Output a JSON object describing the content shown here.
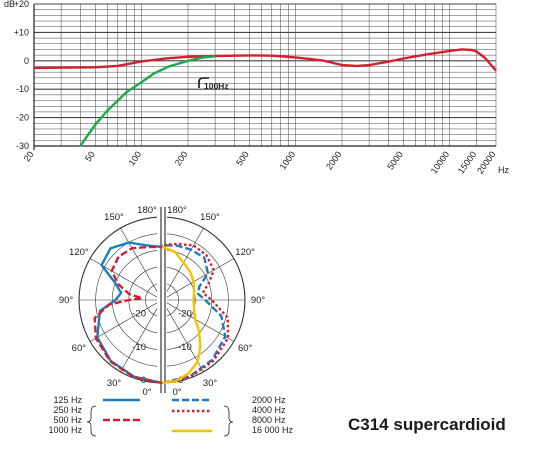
{
  "chart_data": [
    {
      "type": "line",
      "xscale": "log",
      "ylabel": "dB",
      "xunit": "Hz",
      "ylim": [
        -30,
        20
      ],
      "xlim": [
        20,
        20000
      ],
      "y_ticks": [
        "+20",
        "+10",
        "0",
        "-10",
        "-20",
        "-30"
      ],
      "x_ticks": [
        "20",
        "50",
        "100",
        "200",
        "500",
        "1000",
        "2000",
        "5000",
        "10000",
        "15000",
        "20000"
      ],
      "annotation": "100Hz",
      "series": [
        {
          "color": "#d32030",
          "points": [
            [
              20,
              -2.5
            ],
            [
              50,
              -2.3
            ],
            [
              70,
              -1.8
            ],
            [
              100,
              -0.2
            ],
            [
              150,
              0.9
            ],
            [
              200,
              1.4
            ],
            [
              300,
              1.7
            ],
            [
              500,
              1.9
            ],
            [
              700,
              1.8
            ],
            [
              1000,
              1.2
            ],
            [
              1500,
              0.1
            ],
            [
              2000,
              -1.5
            ],
            [
              2500,
              -1.8
            ],
            [
              3000,
              -1.5
            ],
            [
              4000,
              -0.3
            ],
            [
              5000,
              0.8
            ],
            [
              7000,
              2.2
            ],
            [
              10000,
              3.5
            ],
            [
              12000,
              4.0
            ],
            [
              14000,
              3.8
            ],
            [
              15000,
              3.2
            ],
            [
              17000,
              1.0
            ],
            [
              20000,
              -3.5
            ]
          ]
        },
        {
          "color": "#1fa84a",
          "points": [
            [
              40,
              -30
            ],
            [
              45,
              -26
            ],
            [
              50,
              -22.5
            ],
            [
              60,
              -17.5
            ],
            [
              70,
              -14
            ],
            [
              80,
              -11
            ],
            [
              100,
              -7.5
            ],
            [
              120,
              -4.5
            ],
            [
              150,
              -2
            ],
            [
              200,
              0
            ],
            [
              250,
              1.2
            ],
            [
              300,
              1.6
            ]
          ]
        }
      ]
    },
    {
      "type": "polar",
      "r_ticks": [
        "-20",
        "-10",
        "0"
      ],
      "rlim": [
        -25,
        0
      ],
      "angle_labels": [
        "180°",
        "150°",
        "120°",
        "90°",
        "60°",
        "30°",
        "0°"
      ],
      "legend": [
        {
          "label": "125 Hz",
          "color": "#1a7dc4",
          "style": "solid"
        },
        {
          "label": "250 Hz",
          "color": "",
          "style": ""
        },
        {
          "label": "500 Hz",
          "color": "#d32030",
          "style": "dashed"
        },
        {
          "label": "1000 Hz",
          "color": "",
          "style": ""
        },
        {
          "label": "2000 Hz",
          "color": "#1a7dc4",
          "style": "dashed"
        },
        {
          "label": "4000 Hz",
          "color": "#d32030",
          "style": "dotted"
        },
        {
          "label": "8000 Hz",
          "color": "",
          "style": ""
        },
        {
          "label": "16 000 Hz",
          "color": "#f5c400",
          "style": "solid"
        }
      ],
      "series": [
        {
          "name": "125 Hz",
          "side": "left",
          "color": "#1a7dc4",
          "style": "solid",
          "points": [
            [
              0,
              0
            ],
            [
              20,
              -0.4
            ],
            [
              40,
              -1
            ],
            [
              60,
              -2.5
            ],
            [
              80,
              -6
            ],
            [
              90,
              -11
            ],
            [
              100,
              -12.5
            ],
            [
              110,
              -10
            ],
            [
              120,
              -4
            ],
            [
              135,
              -3
            ],
            [
              150,
              -5
            ],
            [
              165,
              -8
            ],
            [
              180,
              -9
            ]
          ]
        },
        {
          "name": "500 Hz",
          "side": "left",
          "color": "#d32030",
          "style": "dashed",
          "points": [
            [
              0,
              0
            ],
            [
              20,
              -0.3
            ],
            [
              40,
              -0.8
            ],
            [
              60,
              -2
            ],
            [
              75,
              -4
            ],
            [
              85,
              -9
            ],
            [
              90,
              -15
            ],
            [
              95,
              -19
            ],
            [
              100,
              -15
            ],
            [
              110,
              -11
            ],
            [
              120,
              -7.5
            ],
            [
              135,
              -6.5
            ],
            [
              150,
              -7
            ],
            [
              165,
              -8.5
            ],
            [
              180,
              -9
            ]
          ]
        },
        {
          "name": "2000 Hz",
          "side": "right",
          "color": "#1a7dc4",
          "style": "dashed",
          "points": [
            [
              0,
              0
            ],
            [
              20,
              -0.5
            ],
            [
              40,
              -1.5
            ],
            [
              60,
              -3
            ],
            [
              75,
              -6.5
            ],
            [
              90,
              -12
            ],
            [
              100,
              -14
            ],
            [
              110,
              -13
            ],
            [
              120,
              -9
            ],
            [
              135,
              -7
            ],
            [
              150,
              -7.5
            ],
            [
              165,
              -8
            ],
            [
              180,
              -8.5
            ]
          ]
        },
        {
          "name": "4000 Hz",
          "side": "right",
          "color": "#d32030",
          "style": "dotted",
          "points": [
            [
              0,
              0
            ],
            [
              20,
              -0.3
            ],
            [
              40,
              -1
            ],
            [
              60,
              -2
            ],
            [
              75,
              -4.5
            ],
            [
              90,
              -10
            ],
            [
              100,
              -12.5
            ],
            [
              110,
              -10
            ],
            [
              120,
              -7
            ],
            [
              135,
              -6
            ],
            [
              150,
              -6
            ],
            [
              165,
              -7.5
            ],
            [
              180,
              -8.5
            ]
          ]
        },
        {
          "name": "16 000 Hz",
          "side": "right",
          "color": "#f5c400",
          "style": "solid",
          "points": [
            [
              0,
              0
            ],
            [
              10,
              -0.3
            ],
            [
              20,
              -1.5
            ],
            [
              30,
              -3.5
            ],
            [
              40,
              -7
            ],
            [
              50,
              -10.5
            ],
            [
              60,
              -13.5
            ],
            [
              75,
              -15
            ],
            [
              90,
              -15.5
            ],
            [
              105,
              -15
            ],
            [
              120,
              -14
            ],
            [
              135,
              -13
            ],
            [
              150,
              -12
            ],
            [
              165,
              -10
            ],
            [
              180,
              -9
            ]
          ]
        }
      ]
    }
  ],
  "product": {
    "title": "C314 supercardioid"
  }
}
